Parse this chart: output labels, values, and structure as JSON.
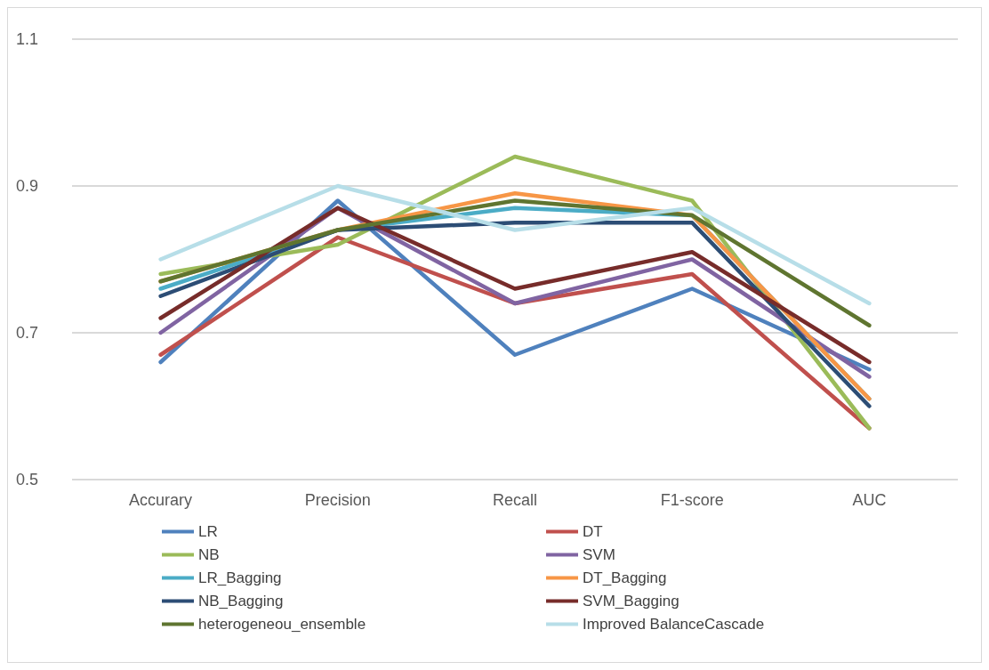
{
  "chart_data": {
    "type": "line",
    "categories": [
      "Accurary",
      "Precision",
      "Recall",
      "F1-score",
      "AUC"
    ],
    "ylim": [
      0.5,
      1.1
    ],
    "yticks": [
      0.5,
      0.7,
      0.9,
      1.1
    ],
    "grid": "y",
    "legend": "bottom",
    "marker": "none",
    "line_style": "solid",
    "series": [
      {
        "name": "LR",
        "color": "#4f81bd",
        "values": [
          0.66,
          0.88,
          0.67,
          0.76,
          0.65
        ]
      },
      {
        "name": "DT",
        "color": "#c0504d",
        "values": [
          0.67,
          0.83,
          0.74,
          0.78,
          0.57
        ]
      },
      {
        "name": "NB",
        "color": "#9bbb59",
        "values": [
          0.78,
          0.82,
          0.94,
          0.88,
          0.57
        ]
      },
      {
        "name": "SVM",
        "color": "#8064a2",
        "values": [
          0.7,
          0.87,
          0.74,
          0.8,
          0.64
        ]
      },
      {
        "name": "LR_Bagging",
        "color": "#4bacc6",
        "values": [
          0.76,
          0.84,
          0.87,
          0.86,
          0.61
        ]
      },
      {
        "name": "DT_Bagging",
        "color": "#f79646",
        "values": [
          0.77,
          0.84,
          0.89,
          0.86,
          0.61
        ]
      },
      {
        "name": "NB_Bagging",
        "color": "#2c4d75",
        "values": [
          0.75,
          0.84,
          0.85,
          0.85,
          0.6
        ]
      },
      {
        "name": "SVM_Bagging",
        "color": "#772c2a",
        "values": [
          0.72,
          0.87,
          0.76,
          0.81,
          0.66
        ]
      },
      {
        "name": "heterogeneou_ensemble",
        "color": "#5f7530",
        "values": [
          0.77,
          0.84,
          0.88,
          0.86,
          0.71
        ]
      },
      {
        "name": "Improved BalanceCascade",
        "color": "#b7dee8",
        "values": [
          0.8,
          0.9,
          0.84,
          0.87,
          0.74
        ]
      }
    ]
  }
}
